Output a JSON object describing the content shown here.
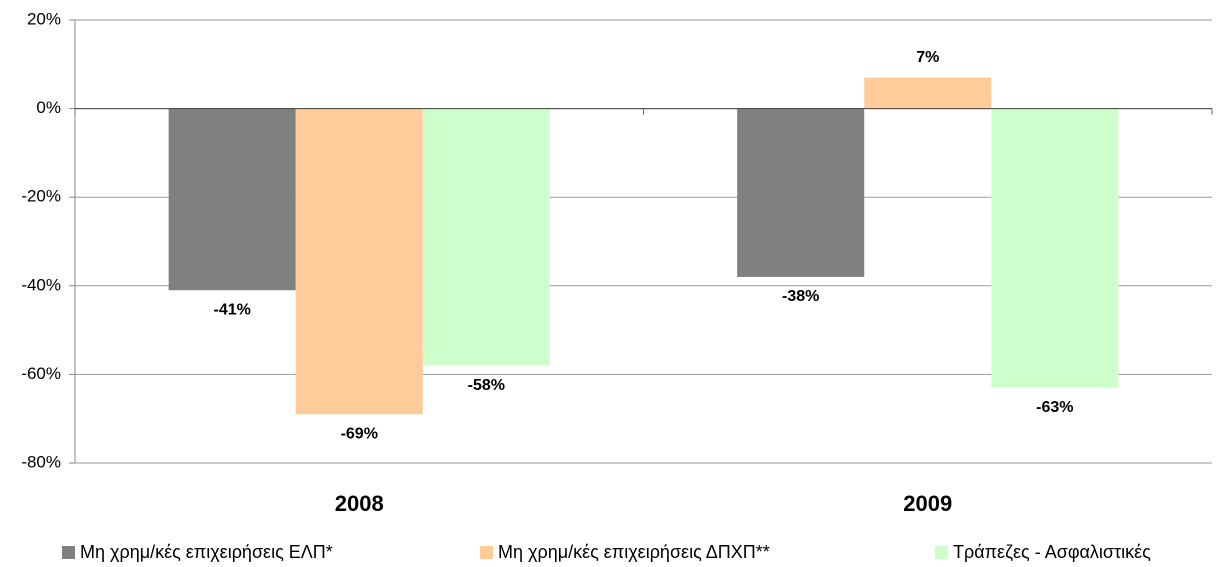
{
  "chart_data": {
    "type": "bar",
    "categories": [
      "2008",
      "2009"
    ],
    "series": [
      {
        "name": "Μη χρημ/κές επιχειρήσεις ΕΛΠ*",
        "color": "#808080",
        "values": [
          -41,
          -38
        ],
        "value_labels": [
          "-41%",
          "-38%"
        ]
      },
      {
        "name": "Μη χρημ/κές επιχειρήσεις ΔΠΧΠ**",
        "color": "#ffcc99",
        "values": [
          -69,
          7
        ],
        "value_labels": [
          "-69%",
          "7%"
        ]
      },
      {
        "name": "Τράπεζες - Ασφαλιστικές",
        "color": "#ccffcc",
        "values": [
          -58,
          -63
        ],
        "value_labels": [
          "-58%",
          "-63%"
        ]
      }
    ],
    "ylim": [
      -80,
      20
    ],
    "yticks": [
      {
        "value": -80,
        "label": "-80%"
      },
      {
        "value": -60,
        "label": "-60%"
      },
      {
        "value": -40,
        "label": "-40%"
      },
      {
        "value": -20,
        "label": "-20%"
      },
      {
        "value": 0,
        "label": "0%"
      },
      {
        "value": 20,
        "label": "20%"
      }
    ],
    "grid": true,
    "legend": "bottom"
  }
}
